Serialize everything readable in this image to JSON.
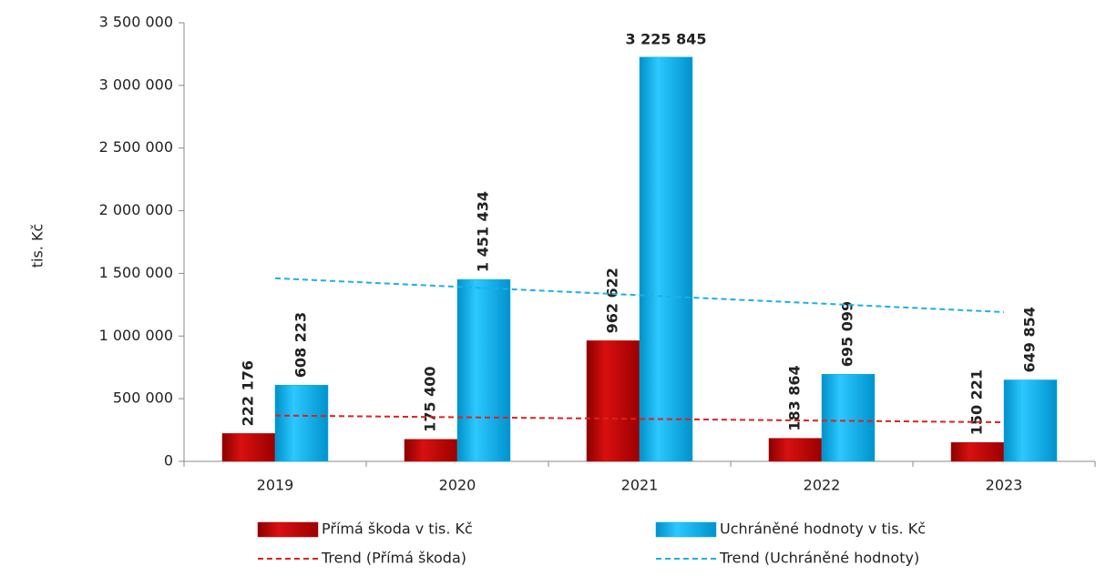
{
  "chart_data": {
    "type": "bar",
    "y_label": "tis. Kč",
    "categories": [
      "2019",
      "2020",
      "2021",
      "2022",
      "2023"
    ],
    "series": [
      {
        "name": "Přímá škoda v tis. Kč",
        "color": "#c00000",
        "values": [
          222176,
          175400,
          962622,
          183864,
          150221
        ],
        "value_labels": [
          "222 176",
          "175 400",
          "962 622",
          "183 864",
          "150 221"
        ]
      },
      {
        "name": "Uchráněné hodnoty v tis. Kč",
        "color": "#00b0f0",
        "values": [
          608223,
          1451434,
          3225845,
          695099,
          649854
        ],
        "value_labels": [
          "608 223",
          "1 451 434",
          "3 225 845",
          "695 099",
          "649 854"
        ]
      },
      {
        "name": "Trend (Přímá škoda)",
        "type": "line",
        "dashed": true,
        "color": "#e02020",
        "values": [
          366000,
          352000,
          339000,
          325000,
          312000
        ]
      },
      {
        "name": "Trend (Uchráněné hodnoty)",
        "type": "line",
        "dashed": true,
        "color": "#1ab0e8",
        "values": [
          1461000,
          1393000,
          1326000,
          1259000,
          1191000
        ]
      }
    ],
    "ylim": [
      0,
      3500000
    ],
    "yticks": [
      0,
      {
        "value": 500000,
        "label": "500 000"
      },
      {
        "value": 1000000,
        "label": "1 000 000"
      },
      {
        "value": 1500000,
        "label": "1 500 000"
      },
      {
        "value": 2000000,
        "label": "2 000 000"
      },
      {
        "value": 2500000,
        "label": "2 500 000"
      },
      {
        "value": 3000000,
        "label": "3 000 000"
      },
      {
        "value": 3500000,
        "label": "3 500 000"
      }
    ],
    "grid": false,
    "legend": "bottom"
  }
}
